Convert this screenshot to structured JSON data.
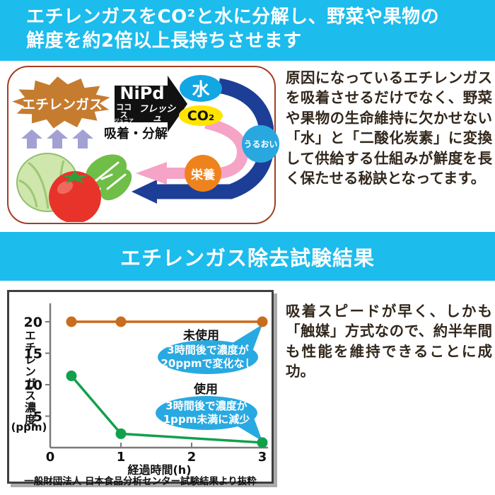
{
  "page": {
    "accent_cyan": "#1cbcec"
  },
  "header": {
    "line1": "エチレンガスをCO²と水に分解し、野菜や果物の",
    "line2": "鮮度を約2倍以上長持ちさせます"
  },
  "diagram": {
    "ethylene_label": "エチレンガス",
    "catalyst_label": "NiPd",
    "brand_top": "ココス",
    "brand_small": "ジュニア",
    "brand_right": "フレッシュ",
    "action_label": "吸着・分解",
    "water_label": "水",
    "co2_label": "CO₂",
    "moisture_label": "うるおい",
    "nutrition_label": "栄養",
    "colors": {
      "starburst": "#c67c2f",
      "black_arrow": "#111111",
      "water_badge": "#12a7e3",
      "co2_badge": "#ffe400",
      "moisture_badge": "#29a8e0",
      "nutrition_badge": "#ee821d",
      "blue_arrow": "#1d3e96",
      "pink_arrow": "#f6a3c8",
      "up_arrows": "#a3a0d4",
      "panel_border": "#a23f23"
    }
  },
  "intro_text": "原因になっているエチレンガスを吸着させるだけでなく、野菜や果物の生命維持に欠かせない「水」と「二酸化炭素」に変換して供給する仕組みが鮮度を長く保たせる秘訣となってます。",
  "section2_title": "エチレンガス除去試験結果",
  "chart_data": {
    "type": "line",
    "xlabel": "経過時間(h)",
    "ylabel": "エチレンガス濃度",
    "y_unit": "(ppm)",
    "x_ticks": [
      0,
      1,
      2,
      3
    ],
    "y_ticks": [
      5,
      10,
      15,
      20
    ],
    "xlim": [
      0,
      3.2
    ],
    "ylim": [
      0,
      22
    ],
    "grid": false,
    "series": [
      {
        "name": "未使用",
        "color": "#c96c1d",
        "x": [
          0.3,
          1,
          3
        ],
        "y": [
          20,
          20,
          20
        ]
      },
      {
        "name": "使用",
        "color": "#13a04c",
        "x": [
          0.3,
          1,
          3
        ],
        "y": [
          11.4,
          2.2,
          0.8
        ]
      }
    ],
    "annotations": [
      {
        "label": "未使用",
        "bubble": [
          "3時間後で濃度が",
          "20ppmで変化なし"
        ],
        "points_to": {
          "x": 3,
          "y": 20
        }
      },
      {
        "label": "使用",
        "bubble": [
          "3時間後で濃度が",
          "1ppm未満に減少"
        ],
        "points_to": {
          "x": 3,
          "y": 0.8
        }
      }
    ],
    "bubble_color": "#29a9e1",
    "caption": "一般財団法人 日本食品分析センター試験結果より抜粋"
  },
  "result_text": "吸着スピードが早く、しかも「触媒」方式なので、約半年間も性能を維持できることに成功。"
}
